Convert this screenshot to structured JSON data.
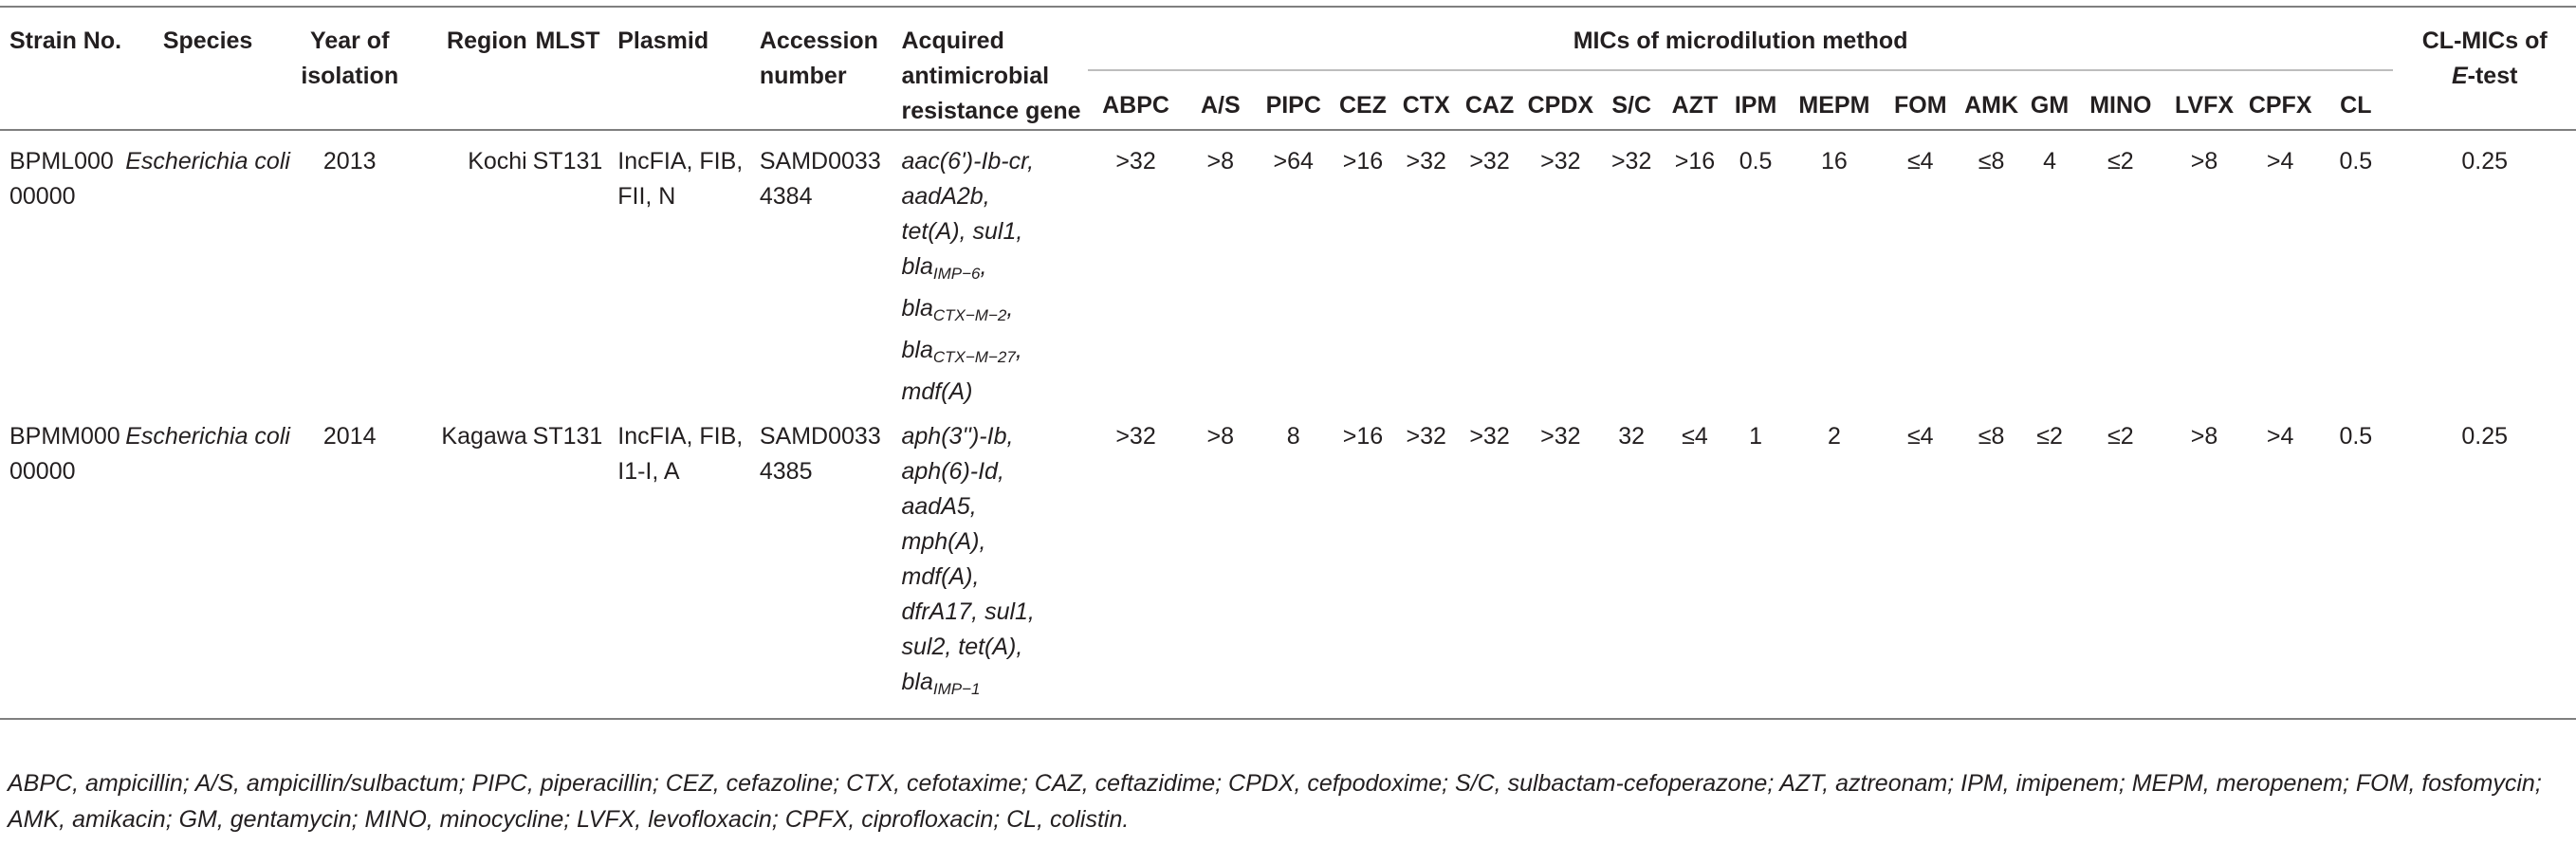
{
  "header": {
    "strain": "Strain No.",
    "species": "Species",
    "year": "Year of isolation",
    "region": "Region",
    "mlst": "MLST",
    "plasmid": "Plasmid",
    "accession": "Accession number",
    "genes": "Acquired antimicrobial resistance gene",
    "mic_group": "MICs of microdilution method",
    "cl_mic_prefix": "CL-MICs of",
    "cl_mic_etest": "E",
    "cl_mic_suffix": "-test",
    "drugs": [
      "ABPC",
      "A/S",
      "PIPC",
      "CEZ",
      "CTX",
      "CAZ",
      "CPDX",
      "S/C",
      "AZT",
      "IPM",
      "MEPM",
      "FOM",
      "AMK",
      "GM",
      "MINO",
      "LVFX",
      "CPFX",
      "CL"
    ]
  },
  "rows": [
    {
      "strain": "BPML00000000",
      "species": "Escherichia coli",
      "year": "2013",
      "region": "Kochi",
      "mlst": "ST131",
      "plasmid": "IncFIA, FIB, FII, N",
      "accession": "SAMD00334384",
      "genes": {
        "g1": "aac(6')-Ib-cr",
        "g2": "aadA2b",
        "g3": "tet(A)",
        "g4": "sul1",
        "g5_base": "bla",
        "g5_sub": "IMP−6",
        "g6_base": "bla",
        "g6_sub": "CTX−M−2",
        "g7_base": "bla",
        "g7_sub": "CTX−M−27",
        "g8": "mdf(A)"
      },
      "mics": [
        ">32",
        ">8",
        ">64",
        ">16",
        ">32",
        ">32",
        ">32",
        ">32",
        ">16",
        "0.5",
        "16",
        "≤4",
        "≤8",
        "4",
        "≤2",
        ">8",
        ">4",
        "0.5"
      ],
      "cl_etest": "0.25"
    },
    {
      "strain": "BPMM00000000",
      "species": "Escherichia coli",
      "year": "2014",
      "region": "Kagawa",
      "mlst": "ST131",
      "plasmid": "IncFIA, FIB, I1-I, A",
      "accession": "SAMD00334385",
      "genes": {
        "g1": "aph(3'')-Ib,",
        "g2": "aph(6)-Id,",
        "g3": "aadA5,",
        "g4": "mph(A),",
        "g5": "mdf(A),",
        "g6": "dfrA17,",
        "g7": "sul1,",
        "g8": "sul2,",
        "g9": "tet(A),",
        "g10_base": "bla",
        "g10_sub": "IMP−1"
      },
      "mics": [
        ">32",
        ">8",
        "8",
        ">16",
        ">32",
        ">32",
        ">32",
        "32",
        "≤4",
        "1",
        "2",
        "≤4",
        "≤8",
        "≤2",
        "≤2",
        ">8",
        ">4",
        "0.5"
      ],
      "cl_etest": "0.25"
    }
  ],
  "footnote": "ABPC, ampicillin; A/S, ampicillin/sulbactum; PIPC, piperacillin; CEZ, cefazoline; CTX, cefotaxime; CAZ, ceftazidime; CPDX, cefpodoxime; S/C, sulbactam-cefoperazone; AZT, aztreonam; IPM, imipenem; MEPM, meropenem; FOM, fosfomycin; AMK, amikacin; GM, gentamycin; MINO, minocycline; LVFX, levofloxacin; CPFX, ciprofloxacin; CL, colistin."
}
